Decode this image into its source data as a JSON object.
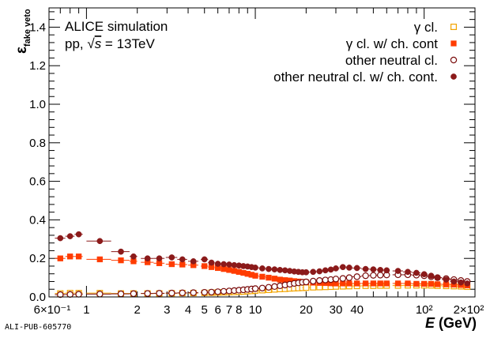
{
  "chart_data": {
    "type": "scatter",
    "annotation": {
      "line1": "ALICE simulation",
      "line2_prefix": "pp, ",
      "line2_sqrt": "√",
      "line2_s": "s",
      "line2_suffix": " = 13TeV"
    },
    "ylabel": {
      "symbol": "ε",
      "subscript": "fake veto"
    },
    "xlabel": {
      "main": "E",
      "unit": " (GeV)"
    },
    "watermark": "ALI-PUB-605770",
    "x_scale": "log",
    "xlim": [
      0.6,
      200
    ],
    "ylim": [
      0,
      1.5
    ],
    "grid": false,
    "legend_position": "top-right",
    "y_ticks": [
      {
        "value": 0.0,
        "label": "0.0"
      },
      {
        "value": 0.2,
        "label": "0.2"
      },
      {
        "value": 0.4,
        "label": "0.4"
      },
      {
        "value": 0.6,
        "label": "0.6"
      },
      {
        "value": 0.8,
        "label": "0.8"
      },
      {
        "value": 1.0,
        "label": "1.0"
      },
      {
        "value": 1.2,
        "label": "1.2"
      },
      {
        "value": 1.4,
        "label": "1.4"
      }
    ],
    "x_tick_labels": [
      {
        "value": 0.6,
        "label": "6×10⁻¹"
      },
      {
        "value": 1,
        "label": "1"
      },
      {
        "value": 2,
        "label": "2"
      },
      {
        "value": 3,
        "label": "3"
      },
      {
        "value": 4,
        "label": "4"
      },
      {
        "value": 5,
        "label": "5"
      },
      {
        "value": 6,
        "label": "6"
      },
      {
        "value": 7,
        "label": "7"
      },
      {
        "value": 8,
        "label": "8"
      },
      {
        "value": 10,
        "label": "10"
      },
      {
        "value": 20,
        "label": "20"
      },
      {
        "value": 30,
        "label": "30"
      },
      {
        "value": 40,
        "label": "40"
      },
      {
        "value": 100,
        "label": "10²"
      },
      {
        "value": 200,
        "label": "2×10²"
      }
    ],
    "series": [
      {
        "name": "γ cl.",
        "marker": "open-square",
        "color": "#f2a400",
        "x": [
          0.7,
          0.8,
          0.9,
          1.2,
          1.6,
          1.9,
          2.3,
          2.7,
          3.2,
          3.7,
          4.3,
          5.0,
          5.5,
          6.0,
          6.5,
          7.0,
          7.5,
          8.0,
          8.5,
          9.0,
          9.5,
          10,
          11,
          12,
          13,
          14,
          15,
          16,
          17,
          18,
          19,
          20,
          22,
          24,
          26,
          28,
          30,
          33,
          36,
          40,
          45,
          50,
          55,
          60,
          70,
          80,
          90,
          100,
          110,
          120,
          135,
          150,
          165,
          180
        ],
        "y": [
          0.018,
          0.02,
          0.02,
          0.02,
          0.018,
          0.018,
          0.018,
          0.018,
          0.019,
          0.02,
          0.02,
          0.021,
          0.022,
          0.023,
          0.024,
          0.025,
          0.026,
          0.027,
          0.028,
          0.03,
          0.031,
          0.033,
          0.035,
          0.037,
          0.039,
          0.041,
          0.042,
          0.044,
          0.045,
          0.046,
          0.047,
          0.048,
          0.05,
          0.051,
          0.052,
          0.053,
          0.054,
          0.055,
          0.056,
          0.057,
          0.058,
          0.058,
          0.059,
          0.059,
          0.059,
          0.06,
          0.06,
          0.06,
          0.06,
          0.058,
          0.057,
          0.056,
          0.055,
          0.053
        ],
        "xerr": [
          0.05,
          0.05,
          0.05,
          0.2,
          0.2,
          0.1,
          0.2,
          0.2,
          0.25,
          0.25,
          0.3,
          0.25,
          0.25,
          0.25,
          0.25,
          0.25,
          0.25,
          0.25,
          0.25,
          0.25,
          0.25,
          0.5,
          0.5,
          0.5,
          0.5,
          0.5,
          0.5,
          0.5,
          0.5,
          0.5,
          0.5,
          1,
          1,
          1,
          1,
          1,
          1.5,
          1.5,
          1.5,
          2.5,
          2.5,
          2.5,
          2.5,
          2.5,
          5,
          5,
          5,
          5,
          5,
          7.5,
          7.5,
          7.5,
          7.5,
          7.5
        ]
      },
      {
        "name": "γ cl. w/ ch. cont",
        "marker": "filled-square",
        "color": "#ff3c00",
        "x": [
          0.7,
          0.8,
          0.9,
          1.2,
          1.6,
          1.9,
          2.3,
          2.7,
          3.2,
          3.7,
          4.3,
          5.0,
          5.5,
          6.0,
          6.5,
          7.0,
          7.5,
          8.0,
          8.5,
          9.0,
          9.5,
          10,
          11,
          12,
          13,
          14,
          15,
          16,
          17,
          18,
          19,
          20,
          22,
          24,
          26,
          28,
          30,
          33,
          36,
          40,
          45,
          50,
          55,
          60,
          70,
          80,
          90,
          100,
          110,
          120,
          135,
          150,
          165,
          180
        ],
        "y": [
          0.2,
          0.21,
          0.21,
          0.195,
          0.19,
          0.185,
          0.18,
          0.175,
          0.17,
          0.168,
          0.165,
          0.16,
          0.155,
          0.15,
          0.145,
          0.14,
          0.135,
          0.13,
          0.125,
          0.12,
          0.115,
          0.11,
          0.105,
          0.1,
          0.095,
          0.09,
          0.087,
          0.085,
          0.082,
          0.08,
          0.078,
          0.076,
          0.074,
          0.073,
          0.072,
          0.071,
          0.07,
          0.07,
          0.07,
          0.07,
          0.07,
          0.07,
          0.07,
          0.07,
          0.07,
          0.07,
          0.068,
          0.068,
          0.068,
          0.066,
          0.065,
          0.064,
          0.062,
          0.06
        ],
        "xerr": [
          0.05,
          0.05,
          0.05,
          0.2,
          0.2,
          0.1,
          0.2,
          0.2,
          0.25,
          0.25,
          0.3,
          0.25,
          0.25,
          0.25,
          0.25,
          0.25,
          0.25,
          0.25,
          0.25,
          0.25,
          0.25,
          0.5,
          0.5,
          0.5,
          0.5,
          0.5,
          0.5,
          0.5,
          0.5,
          0.5,
          0.5,
          1,
          1,
          1,
          1,
          1,
          1.5,
          1.5,
          1.5,
          2.5,
          2.5,
          2.5,
          2.5,
          2.5,
          5,
          5,
          5,
          5,
          5,
          7.5,
          7.5,
          7.5,
          7.5,
          7.5
        ]
      },
      {
        "name": "other neutral cl.",
        "marker": "open-circle",
        "color": "#7a0c0c",
        "x": [
          0.7,
          0.8,
          0.9,
          1.2,
          1.6,
          1.9,
          2.3,
          2.7,
          3.2,
          3.7,
          4.3,
          5.0,
          5.5,
          6.0,
          6.5,
          7.0,
          7.5,
          8.0,
          8.5,
          9.0,
          9.5,
          10,
          11,
          12,
          13,
          14,
          15,
          16,
          17,
          18,
          19,
          20,
          22,
          24,
          26,
          28,
          30,
          33,
          36,
          40,
          45,
          50,
          55,
          60,
          70,
          80,
          90,
          100,
          110,
          120,
          135,
          150,
          165,
          180
        ],
        "y": [
          0.012,
          0.013,
          0.014,
          0.015,
          0.016,
          0.017,
          0.018,
          0.019,
          0.02,
          0.021,
          0.022,
          0.024,
          0.025,
          0.027,
          0.029,
          0.031,
          0.033,
          0.035,
          0.037,
          0.039,
          0.041,
          0.043,
          0.046,
          0.05,
          0.054,
          0.058,
          0.062,
          0.066,
          0.07,
          0.073,
          0.076,
          0.078,
          0.082,
          0.085,
          0.088,
          0.09,
          0.093,
          0.096,
          0.1,
          0.105,
          0.11,
          0.112,
          0.113,
          0.114,
          0.115,
          0.115,
          0.113,
          0.11,
          0.105,
          0.1,
          0.095,
          0.09,
          0.085,
          0.08
        ],
        "xerr": [
          0.05,
          0.05,
          0.05,
          0.2,
          0.2,
          0.1,
          0.2,
          0.2,
          0.25,
          0.25,
          0.3,
          0.25,
          0.25,
          0.25,
          0.25,
          0.25,
          0.25,
          0.25,
          0.25,
          0.25,
          0.25,
          0.5,
          0.5,
          0.5,
          0.5,
          0.5,
          0.5,
          0.5,
          0.5,
          0.5,
          0.5,
          1,
          1,
          1,
          1,
          1,
          1.5,
          1.5,
          1.5,
          2.5,
          2.5,
          2.5,
          2.5,
          2.5,
          5,
          5,
          5,
          5,
          5,
          7.5,
          7.5,
          7.5,
          7.5,
          7.5
        ]
      },
      {
        "name": "other neutral cl. w/ ch. cont.",
        "marker": "filled-circle",
        "color": "#8b1a1a",
        "x": [
          0.7,
          0.8,
          0.9,
          1.2,
          1.6,
          1.9,
          2.3,
          2.7,
          3.2,
          3.7,
          4.3,
          5.0,
          5.5,
          6.0,
          6.5,
          7.0,
          7.5,
          8.0,
          8.5,
          9.0,
          9.5,
          10,
          11,
          12,
          13,
          14,
          15,
          16,
          17,
          18,
          19,
          20,
          22,
          24,
          26,
          28,
          30,
          33,
          36,
          40,
          45,
          50,
          55,
          60,
          70,
          80,
          90,
          100,
          110,
          120,
          135,
          150,
          165,
          180
        ],
        "y": [
          0.305,
          0.315,
          0.325,
          0.29,
          0.235,
          0.21,
          0.2,
          0.2,
          0.205,
          0.195,
          0.185,
          0.195,
          0.178,
          0.172,
          0.17,
          0.168,
          0.165,
          0.163,
          0.16,
          0.158,
          0.155,
          0.152,
          0.148,
          0.145,
          0.143,
          0.14,
          0.138,
          0.135,
          0.132,
          0.13,
          0.128,
          0.128,
          0.13,
          0.133,
          0.138,
          0.142,
          0.148,
          0.155,
          0.152,
          0.15,
          0.145,
          0.143,
          0.14,
          0.138,
          0.135,
          0.13,
          0.125,
          0.118,
          0.11,
          0.1,
          0.09,
          0.08,
          0.075,
          0.07
        ],
        "xerr": [
          0.05,
          0.05,
          0.05,
          0.2,
          0.2,
          0.1,
          0.2,
          0.2,
          0.25,
          0.25,
          0.3,
          0.25,
          0.25,
          0.25,
          0.25,
          0.25,
          0.25,
          0.25,
          0.25,
          0.25,
          0.25,
          0.5,
          0.5,
          0.5,
          0.5,
          0.5,
          0.5,
          0.5,
          0.5,
          0.5,
          0.5,
          1,
          1,
          1,
          1,
          1,
          1.5,
          1.5,
          1.5,
          2.5,
          2.5,
          2.5,
          2.5,
          2.5,
          5,
          5,
          5,
          5,
          5,
          7.5,
          7.5,
          7.5,
          7.5,
          7.5
        ]
      }
    ]
  }
}
